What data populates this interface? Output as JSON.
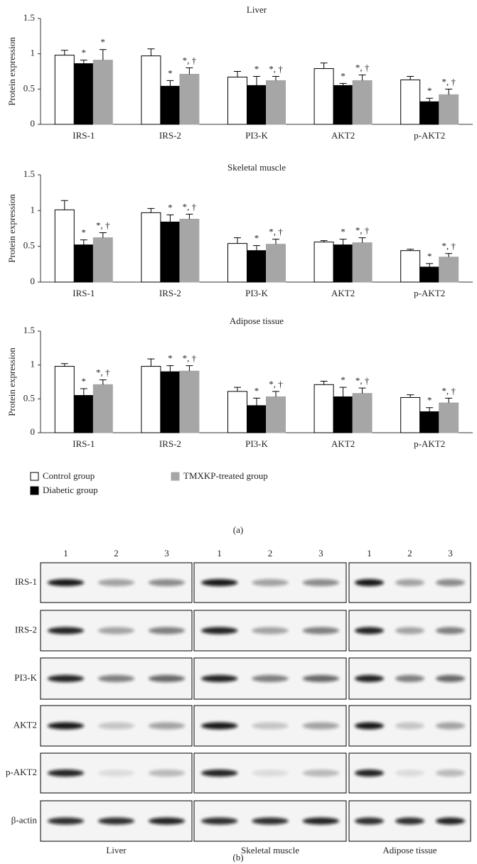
{
  "chart_data": [
    {
      "type": "bar",
      "title": "Liver",
      "y_label": "Protein expression",
      "categories": [
        "IRS-1",
        "IRS-2",
        "PI3-K",
        "AKT2",
        "p-AKT2"
      ],
      "ylim": [
        0,
        1.5
      ],
      "yticks": [
        0,
        0.5,
        1,
        1.5
      ],
      "series": [
        {
          "name": "Control group",
          "color": "#ffffff",
          "values": [
            0.98,
            0.97,
            0.67,
            0.79,
            0.63
          ],
          "errors": [
            0.07,
            0.1,
            0.08,
            0.08,
            0.05
          ]
        },
        {
          "name": "Diabetic group",
          "color": "#000000",
          "values": [
            0.86,
            0.54,
            0.55,
            0.55,
            0.32
          ],
          "errors": [
            0.05,
            0.08,
            0.13,
            0.03,
            0.05
          ],
          "annotations": [
            "*",
            "*",
            "*",
            "*",
            "*"
          ]
        },
        {
          "name": "TMXKP-treated group",
          "color": "#a6a6a6",
          "values": [
            0.91,
            0.71,
            0.62,
            0.62,
            0.42
          ],
          "errors": [
            0.15,
            0.09,
            0.06,
            0.08,
            0.08
          ],
          "annotations": [
            "*",
            "*, †",
            "*, †",
            "*, †",
            "*, †"
          ]
        }
      ]
    },
    {
      "type": "bar",
      "title": "Skeletal muscle",
      "y_label": "Protein expression",
      "categories": [
        "IRS-1",
        "IRS-2",
        "PI3-K",
        "AKT2",
        "p-AKT2"
      ],
      "ylim": [
        0,
        1.5
      ],
      "yticks": [
        0,
        0.5,
        1,
        1.5
      ],
      "series": [
        {
          "color": "#ffffff",
          "values": [
            1.01,
            0.97,
            0.54,
            0.56,
            0.44
          ],
          "errors": [
            0.13,
            0.06,
            0.08,
            0.02,
            0.02
          ]
        },
        {
          "color": "#000000",
          "values": [
            0.52,
            0.84,
            0.44,
            0.52,
            0.21
          ],
          "errors": [
            0.07,
            0.1,
            0.07,
            0.08,
            0.05
          ],
          "annotations": [
            "*",
            "*",
            "*",
            "*",
            "*"
          ]
        },
        {
          "color": "#a6a6a6",
          "values": [
            0.62,
            0.88,
            0.53,
            0.55,
            0.35
          ],
          "errors": [
            0.07,
            0.07,
            0.07,
            0.07,
            0.05
          ],
          "annotations": [
            "*, †",
            "*, †",
            "*, †",
            "*, †",
            "*, †"
          ]
        }
      ]
    },
    {
      "type": "bar",
      "title": "Adipose tissue",
      "y_label": "Protein expression",
      "categories": [
        "IRS-1",
        "IRS-2",
        "PI3-K",
        "AKT2",
        "p-AKT2"
      ],
      "ylim": [
        0,
        1.5
      ],
      "yticks": [
        0,
        0.5,
        1,
        1.5
      ],
      "series": [
        {
          "color": "#ffffff",
          "values": [
            0.98,
            0.98,
            0.61,
            0.71,
            0.52
          ],
          "errors": [
            0.04,
            0.11,
            0.06,
            0.05,
            0.04
          ]
        },
        {
          "color": "#000000",
          "values": [
            0.55,
            0.9,
            0.4,
            0.53,
            0.31
          ],
          "errors": [
            0.1,
            0.09,
            0.11,
            0.14,
            0.06
          ],
          "annotations": [
            "*",
            "*",
            "*",
            "*",
            "*"
          ]
        },
        {
          "color": "#a6a6a6",
          "values": [
            0.71,
            0.91,
            0.53,
            0.58,
            0.44
          ],
          "errors": [
            0.07,
            0.08,
            0.08,
            0.08,
            0.07
          ],
          "annotations": [
            "*, †",
            "*, †",
            "*, †",
            "*, †",
            "*, †"
          ]
        }
      ]
    }
  ],
  "figure_labels": {
    "a": "(a)",
    "b": "(b)"
  },
  "blots": {
    "lanes": [
      "1",
      "2",
      "3"
    ],
    "proteins": [
      "IRS-1",
      "IRS-2",
      "PI3-K",
      "AKT2",
      "p-AKT2",
      "β-actin"
    ],
    "tissues": [
      "Liver",
      "Skeletal muscle",
      "Adipose tissue"
    ]
  }
}
